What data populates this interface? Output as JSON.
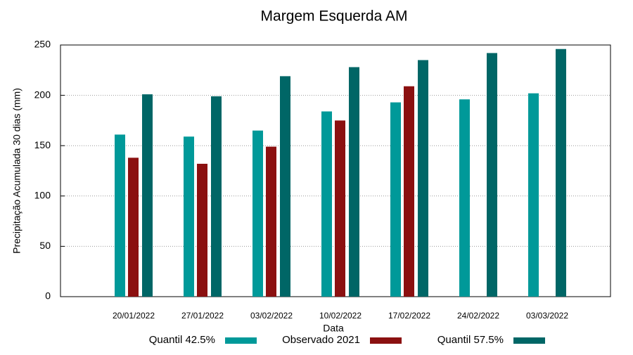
{
  "chart_data": {
    "type": "bar",
    "title": "Margem Esquerda AM",
    "x_label": "Data",
    "y_label": "Precipitação Acumulada 30 dias (mm)",
    "categories": [
      "20/01/2022",
      "27/01/2022",
      "03/02/2022",
      "10/02/2022",
      "17/02/2022",
      "24/02/2022",
      "03/03/2022"
    ],
    "series": [
      {
        "name": "Quantil 42.5%",
        "color": "#009999",
        "values": [
          161,
          159,
          165,
          184,
          193,
          196,
          202
        ]
      },
      {
        "name": "Observado 2021",
        "color": "#8b1010",
        "values": [
          138,
          132,
          149,
          175,
          209,
          null,
          null
        ]
      },
      {
        "name": "Quantil 57.5%",
        "color": "#006666",
        "values": [
          201,
          199,
          219,
          228,
          235,
          242,
          246
        ]
      }
    ],
    "ylim": [
      0,
      250
    ],
    "yticks": [
      0,
      50,
      100,
      150,
      200,
      250
    ],
    "grid": true,
    "legend": "bottom"
  }
}
